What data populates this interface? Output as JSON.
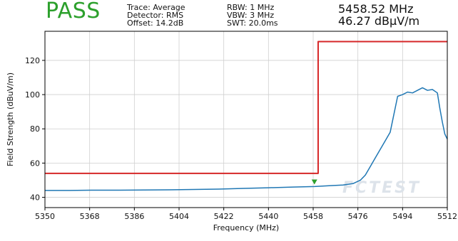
{
  "header": {
    "verdict": "PASS",
    "verdict_color": "#2ca02c",
    "info_col_1": [
      "Trace: Average",
      "Detector: RMS",
      "Offset: 14.2dB"
    ],
    "info_col_2": [
      "RBW: 1 MHz",
      "VBW: 3 MHz",
      "SWT: 20.0ms"
    ],
    "marker_frequency": "5458.52 MHz",
    "marker_level": "46.27 dBµV/m"
  },
  "watermark": {
    "text": "FCTEST"
  },
  "chart_data": {
    "type": "line",
    "xlabel": "Frequency (MHz)",
    "ylabel": "Field Strength (dBuV/m)",
    "xlim": [
      5350,
      5512
    ],
    "ylim": [
      34,
      137
    ],
    "x_ticks": [
      5350,
      5368,
      5386,
      5404,
      5422,
      5440,
      5458,
      5476,
      5494,
      5512
    ],
    "y_ticks": [
      40,
      60,
      80,
      100,
      120
    ],
    "grid": true,
    "series": [
      {
        "color": "#1f77b4",
        "x": [
          5350,
          5360,
          5370,
          5380,
          5390,
          5400,
          5410,
          5420,
          5430,
          5440,
          5450,
          5458.5,
          5465,
          5470,
          5474,
          5477,
          5479,
          5481,
          5483,
          5485,
          5487,
          5489,
          5490,
          5491,
          5492,
          5493,
          5494,
          5496,
          5498,
          5500,
          5502,
          5504,
          5506,
          5508,
          5509,
          5510,
          5511,
          5512
        ],
        "y": [
          44,
          44,
          44.2,
          44.2,
          44.3,
          44.4,
          44.6,
          44.8,
          45.2,
          45.6,
          46.0,
          46.3,
          46.8,
          47.2,
          48,
          50,
          53,
          58,
          63,
          68,
          73,
          78,
          85,
          92,
          99,
          99.5,
          100,
          101.5,
          101,
          102.5,
          104,
          102.5,
          103,
          101,
          92,
          84,
          77,
          74
        ]
      },
      {
        "color": "#d62728",
        "x": [
          5350,
          5460,
          5460,
          5512
        ],
        "y": [
          54,
          54,
          131,
          131
        ]
      }
    ],
    "marker": {
      "x": 5458.5,
      "y": 46.27,
      "color": "#2ca02c"
    }
  }
}
